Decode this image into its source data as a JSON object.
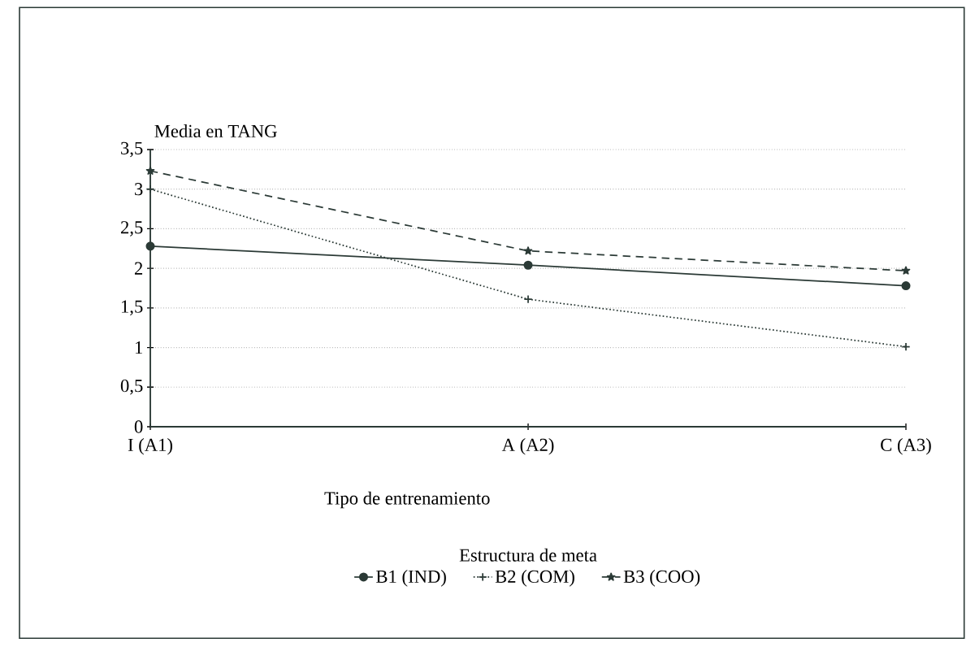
{
  "chart_data": {
    "type": "line",
    "ylabel": "Media en TANG",
    "xlabel": "Tipo de entrenamiento",
    "legend_title": "Estructura de meta",
    "categories": [
      "I (A1)",
      "A (A2)",
      "C (A3)"
    ],
    "series": [
      {
        "name": "B1 (IND)",
        "color": "#2b3a36",
        "values": [
          2.28,
          2.04,
          1.78
        ],
        "line_style": "solid",
        "marker": "circle"
      },
      {
        "name": "B2 (COM)",
        "color": "#2b3a36",
        "values": [
          3.0,
          1.61,
          1.01
        ],
        "line_style": "dotted",
        "marker": "cross"
      },
      {
        "name": "B3 (COO)",
        "color": "#2b3a36",
        "values": [
          3.23,
          2.22,
          1.97
        ],
        "line_style": "dashed",
        "marker": "star"
      }
    ],
    "ylim": [
      0,
      3.5
    ],
    "yticks": [
      0,
      {
        "value": 0.5,
        "label": "0,5"
      },
      1,
      {
        "value": 1.5,
        "label": "1,5"
      },
      2,
      {
        "value": 2.5,
        "label": "2,5"
      },
      3,
      {
        "value": 3.5,
        "label": "3,5"
      }
    ],
    "grid": "y",
    "legend": "bottom"
  }
}
